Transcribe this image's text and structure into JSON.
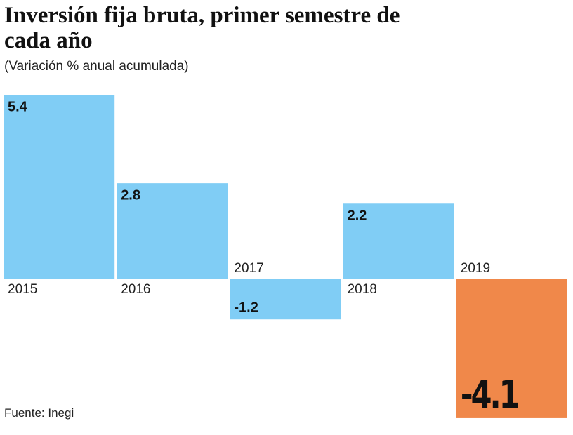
{
  "chart_data": {
    "type": "bar",
    "title": "Inversión fija bruta, primer semestre de cada año",
    "subtitle": "(Variación % anual acumulada)",
    "source": "Fuente: Inegi",
    "categories": [
      "2015",
      "2016",
      "2017",
      "2018",
      "2019"
    ],
    "values": [
      5.4,
      2.8,
      -1.2,
      2.2,
      -4.1
    ],
    "colors": [
      "#80cdf5",
      "#80cdf5",
      "#80cdf5",
      "#80cdf5",
      "#f0884a"
    ]
  }
}
